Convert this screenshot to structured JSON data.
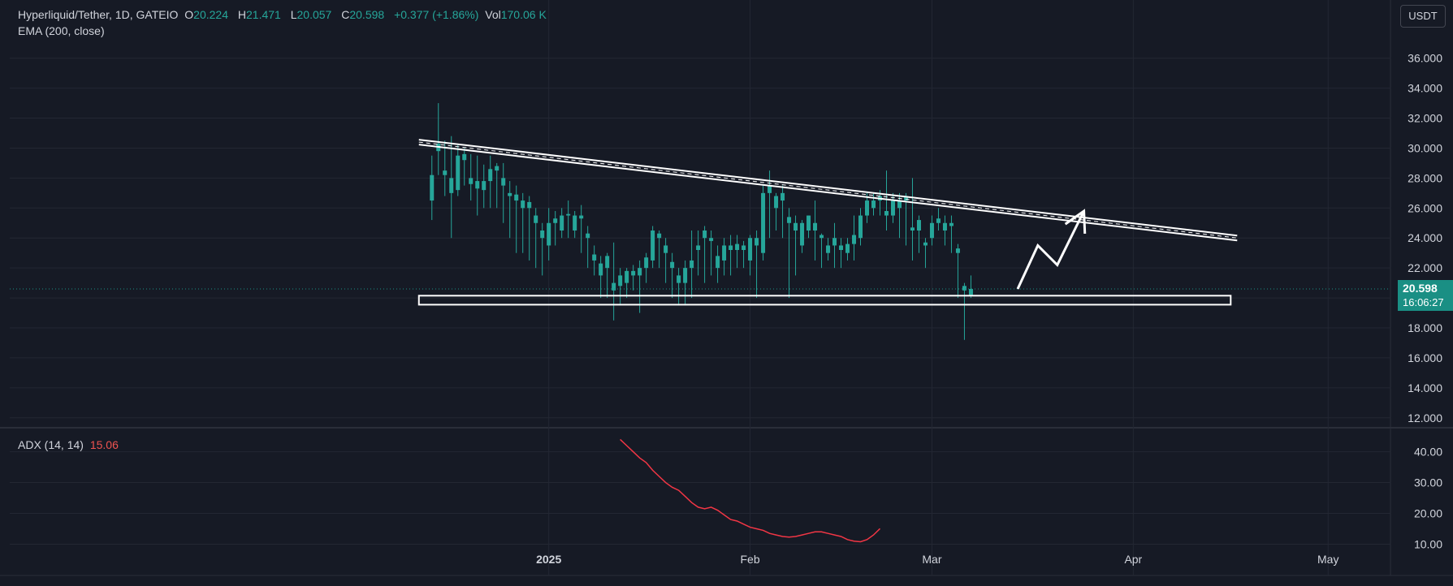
{
  "legend": {
    "symbol": "Hyperliquid/Tether, 1D, GATEIO",
    "o_label": "O",
    "o_val": "20.224",
    "h_label": "H",
    "h_val": "21.471",
    "l_label": "L",
    "l_val": "20.057",
    "c_label": "C",
    "c_val": "20.598",
    "change": "+0.377 (+1.86%)",
    "vol_label": "Vol",
    "vol_val": "170.06 K",
    "ema": "EMA (200, close)",
    "adx_label": "ADX (14, 14)",
    "adx_val": "15.06"
  },
  "currency_button": "USDT",
  "price_tag": {
    "price": "20.598",
    "countdown": "16:06:27"
  },
  "colors": {
    "up": "#26a69a",
    "down": "#ef5350",
    "adx": "#f23645",
    "background": "#161a25",
    "annotation": "#ffffff",
    "last_price": "#1a8f84"
  },
  "chart_data": [
    {
      "type": "candlestick",
      "title": "Hyperliquid/Tether, 1D, GATEIO",
      "ylim": [
        11.5,
        37.5
      ],
      "y_ticks": [
        "12.000",
        "14.000",
        "16.000",
        "18.000",
        "20.000",
        "22.000",
        "24.000",
        "26.000",
        "28.000",
        "30.000",
        "32.000",
        "34.000",
        "36.000"
      ],
      "x_ticks": [
        {
          "label": "2025",
          "index": 18
        },
        {
          "label": "Feb",
          "index": 49
        },
        {
          "label": "Mar",
          "index": 77
        },
        {
          "label": "Apr",
          "index": 108
        },
        {
          "label": "May",
          "index": 138
        }
      ],
      "x_range": [
        -65,
        147.6
      ],
      "last_price": 20.598,
      "ohlc": [
        [
          26.5,
          28.2,
          25.2,
          29.5
        ],
        [
          29.8,
          30.3,
          28.2,
          33.0
        ],
        [
          28.2,
          28.5,
          26.8,
          30.5
        ],
        [
          27.0,
          28.0,
          24.0,
          30.8
        ],
        [
          27.2,
          29.5,
          26.8,
          30.2
        ],
        [
          29.2,
          29.6,
          27.5,
          30.0
        ],
        [
          27.6,
          28.0,
          26.5,
          29.6
        ],
        [
          27.3,
          27.8,
          25.5,
          29.5
        ],
        [
          27.2,
          27.8,
          26.0,
          28.9
        ],
        [
          27.8,
          28.6,
          26.0,
          29.5
        ],
        [
          28.5,
          28.8,
          26.0,
          29.0
        ],
        [
          27.5,
          28.0,
          25.0,
          29.0
        ],
        [
          26.8,
          27.0,
          24.0,
          27.8
        ],
        [
          26.5,
          26.9,
          23.0,
          27.5
        ],
        [
          26.0,
          26.5,
          23.0,
          27.0
        ],
        [
          26.0,
          26.4,
          22.5,
          26.8
        ],
        [
          25.0,
          25.5,
          22.0,
          26.0
        ],
        [
          24.0,
          24.5,
          21.5,
          25.0
        ],
        [
          23.5,
          25.0,
          22.5,
          26.0
        ],
        [
          25.0,
          25.3,
          23.5,
          25.8
        ],
        [
          24.5,
          25.5,
          24.0,
          26.0
        ],
        [
          25.5,
          25.6,
          24.0,
          26.5
        ],
        [
          24.5,
          25.5,
          24.0,
          25.8
        ],
        [
          25.3,
          25.5,
          23.0,
          26.2
        ],
        [
          24.0,
          24.3,
          22.0,
          24.8
        ],
        [
          22.5,
          22.9,
          21.5,
          23.5
        ],
        [
          21.5,
          22.3,
          20.0,
          22.8
        ],
        [
          22.0,
          22.8,
          20.0,
          23.0
        ],
        [
          20.5,
          21.0,
          18.5,
          23.7
        ],
        [
          20.8,
          21.5,
          19.5,
          22.0
        ],
        [
          21.0,
          21.8,
          20.0,
          22.0
        ],
        [
          21.5,
          21.8,
          20.5,
          22.2
        ],
        [
          21.5,
          22.0,
          19.0,
          22.5
        ],
        [
          22.0,
          22.7,
          21.0,
          23.0
        ],
        [
          22.5,
          24.5,
          22.0,
          24.8
        ],
        [
          24.0,
          24.3,
          22.0,
          24.5
        ],
        [
          23.0,
          23.5,
          21.0,
          24.0
        ],
        [
          22.0,
          22.4,
          20.0,
          23.0
        ],
        [
          21.0,
          21.5,
          19.5,
          22.0
        ],
        [
          21.0,
          22.0,
          19.5,
          22.5
        ],
        [
          22.0,
          22.5,
          20.0,
          24.5
        ],
        [
          23.2,
          23.5,
          21.5,
          24.5
        ],
        [
          24.0,
          24.5,
          21.0,
          24.8
        ],
        [
          23.8,
          24.0,
          21.5,
          24.5
        ],
        [
          22.0,
          22.8,
          21.0,
          23.5
        ],
        [
          22.5,
          23.5,
          21.5,
          24.0
        ],
        [
          23.2,
          23.5,
          21.5,
          24.2
        ],
        [
          23.2,
          23.6,
          22.0,
          24.2
        ],
        [
          23.2,
          23.5,
          22.0,
          23.8
        ],
        [
          22.5,
          24.0,
          21.5,
          24.2
        ],
        [
          23.5,
          24.0,
          20.0,
          24.5
        ],
        [
          23.0,
          27.0,
          22.5,
          27.5
        ],
        [
          27.0,
          27.5,
          24.0,
          28.5
        ],
        [
          26.0,
          26.8,
          24.5,
          27.0
        ],
        [
          26.5,
          27.0,
          24.0,
          27.5
        ],
        [
          25.0,
          25.4,
          20.0,
          26.0
        ],
        [
          24.5,
          25.0,
          21.5,
          25.5
        ],
        [
          23.5,
          25.0,
          23.0,
          25.2
        ],
        [
          24.5,
          25.5,
          24.0,
          25.5
        ],
        [
          24.5,
          25.0,
          22.5,
          26.5
        ],
        [
          24.0,
          24.2,
          22.0,
          24.3
        ],
        [
          23.0,
          23.5,
          22.5,
          24.0
        ],
        [
          23.5,
          24.0,
          22.0,
          25.0
        ],
        [
          23.2,
          23.5,
          22.0,
          24.0
        ],
        [
          23.0,
          23.6,
          22.5,
          24.0
        ],
        [
          23.6,
          24.2,
          22.5,
          25.5
        ],
        [
          24.0,
          25.5,
          23.5,
          26.0
        ],
        [
          25.5,
          26.5,
          25.0,
          27.0
        ],
        [
          26.0,
          26.5,
          25.5,
          27.0
        ],
        [
          26.5,
          26.8,
          25.5,
          27.2
        ],
        [
          25.5,
          25.8,
          24.5,
          28.5
        ],
        [
          25.5,
          26.5,
          25.0,
          27.0
        ],
        [
          26.0,
          26.5,
          24.0,
          27.0
        ],
        [
          26.5,
          26.8,
          23.5,
          27.0
        ],
        [
          24.5,
          24.7,
          22.5,
          28.0
        ],
        [
          24.5,
          25.2,
          23.0,
          25.5
        ],
        [
          23.5,
          23.7,
          22.0,
          24.0
        ],
        [
          24.0,
          25.0,
          23.5,
          25.5
        ],
        [
          25.0,
          25.3,
          24.5,
          26.0
        ],
        [
          24.5,
          25.0,
          23.5,
          25.5
        ],
        [
          24.8,
          25.0,
          23.0,
          25.5
        ],
        [
          23.0,
          23.3,
          20.0,
          23.6
        ],
        [
          20.5,
          20.8,
          17.2,
          21.0
        ],
        [
          20.2,
          20.6,
          20.0,
          21.5
        ]
      ],
      "annotations": {
        "channel_top_start": {
          "index": -2,
          "value": 30.4
        },
        "channel_top_end": {
          "index": 124,
          "value": 24.0
        },
        "support_zone": {
          "start_index": -2,
          "end_index": 123,
          "low": 19.55,
          "high": 20.15
        },
        "projection": [
          {
            "index": 90.2,
            "value": 20.6
          },
          {
            "index": 93.3,
            "value": 23.5
          },
          {
            "index": 96.3,
            "value": 22.2
          },
          {
            "index": 100.4,
            "value": 25.8
          }
        ]
      }
    },
    {
      "type": "line",
      "title": "ADX (14, 14)",
      "ylim": [
        7.5,
        47.0
      ],
      "y_ticks": [
        "10.00",
        "20.00",
        "30.00",
        "40.00"
      ],
      "x_start_index": 29,
      "series": [
        {
          "name": "ADX (14, 14)",
          "values": [
            44.0,
            42.0,
            40.0,
            38.0,
            36.5,
            34.0,
            32.0,
            30.0,
            28.5,
            27.5,
            25.5,
            23.5,
            22.0,
            21.5,
            22.0,
            21.0,
            19.5,
            18.0,
            17.5,
            16.5,
            15.5,
            15.0,
            14.5,
            13.5,
            13.0,
            12.5,
            12.3,
            12.5,
            13.0,
            13.5,
            14.0,
            14.0,
            13.5,
            13.0,
            12.5,
            11.5,
            11.0,
            10.8,
            11.5,
            13.0,
            15.06
          ]
        }
      ]
    }
  ]
}
